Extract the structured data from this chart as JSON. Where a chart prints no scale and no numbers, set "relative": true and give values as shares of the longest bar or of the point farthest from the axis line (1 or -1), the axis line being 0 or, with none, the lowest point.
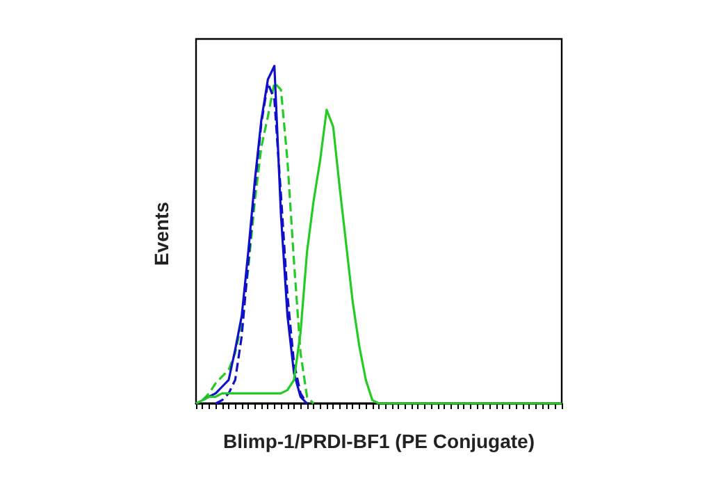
{
  "chart_data": {
    "type": "line",
    "xlabel": "Blimp-1/PRDI-BF1 (PE Conjugate)",
    "ylabel": "Events",
    "relative": true,
    "grid": false,
    "categories": [
      null,
      null,
      null,
      null,
      null,
      null,
      null,
      null,
      null,
      null,
      null,
      null,
      null,
      null,
      null,
      null,
      null,
      null,
      null,
      null,
      null,
      null,
      null,
      null,
      null,
      null,
      null,
      null,
      null,
      null,
      null,
      null,
      null,
      null,
      null,
      null,
      null,
      null,
      null,
      null,
      null,
      null,
      null,
      null,
      null,
      null,
      null,
      null,
      null,
      null,
      null,
      null,
      null,
      null,
      null,
      null,
      null
    ],
    "series": [
      {
        "color": "#22cc22",
        "line_style": "dashed",
        "values": [
          null,
          0.01,
          0.03,
          0.06,
          0.08,
          0.1,
          0.15,
          0.24,
          0.4,
          0.6,
          0.76,
          0.85,
          0.95,
          0.93,
          0.72,
          0.42,
          0.15,
          0.02,
          0,
          null,
          null,
          null,
          null,
          null,
          null,
          null,
          null,
          null,
          null,
          null,
          null,
          null,
          null,
          null,
          null,
          null,
          null,
          null,
          null,
          null,
          null,
          null,
          null,
          null,
          null,
          null,
          null,
          null,
          null,
          null,
          null,
          null,
          null,
          null,
          null,
          null,
          null
        ]
      },
      {
        "color": "#1010c8",
        "line_style": "dashed",
        "values": [
          null,
          null,
          null,
          0,
          0.01,
          0.03,
          0.07,
          0.2,
          0.42,
          0.64,
          0.83,
          0.95,
          0.9,
          0.62,
          0.32,
          0.12,
          0.03,
          0,
          null,
          null,
          null,
          null,
          null,
          null,
          null,
          null,
          null,
          null,
          null,
          null,
          null,
          null,
          null,
          null,
          null,
          null,
          null,
          null,
          null,
          null,
          null,
          null,
          null,
          null,
          null,
          null,
          null,
          null,
          null,
          null,
          null,
          null,
          null,
          null,
          null,
          null,
          null
        ]
      },
      {
        "color": "#1010c8",
        "line_style": "solid",
        "values": [
          null,
          0.01,
          0.02,
          0.03,
          0.05,
          0.07,
          0.16,
          0.26,
          0.45,
          0.66,
          0.84,
          0.96,
          1,
          0.56,
          0.26,
          0.09,
          0.02,
          0,
          null,
          null,
          null,
          null,
          null,
          null,
          null,
          null,
          null,
          null,
          null,
          null,
          null,
          null,
          null,
          null,
          null,
          null,
          null,
          null,
          null,
          null,
          null,
          null,
          null,
          null,
          null,
          null,
          null,
          null,
          null,
          null,
          null,
          null,
          null,
          null,
          null,
          null,
          null
        ]
      },
      {
        "color": "#22cc22",
        "line_style": "solid",
        "values": [
          0,
          0.01,
          0.02,
          0.02,
          0.03,
          0.03,
          0.03,
          0.03,
          0.03,
          0.03,
          0.03,
          0.03,
          0.03,
          0.03,
          0.04,
          0.07,
          0.21,
          0.45,
          0.6,
          0.72,
          0.87,
          0.82,
          0.64,
          0.47,
          0.3,
          0.17,
          0.07,
          0.01,
          0,
          0,
          0,
          0,
          0,
          0,
          0,
          0,
          0,
          0,
          0,
          0,
          0,
          0,
          0,
          0,
          0,
          0,
          0,
          0,
          0,
          0,
          0,
          0,
          0,
          0,
          0,
          0,
          0
        ]
      }
    ]
  }
}
